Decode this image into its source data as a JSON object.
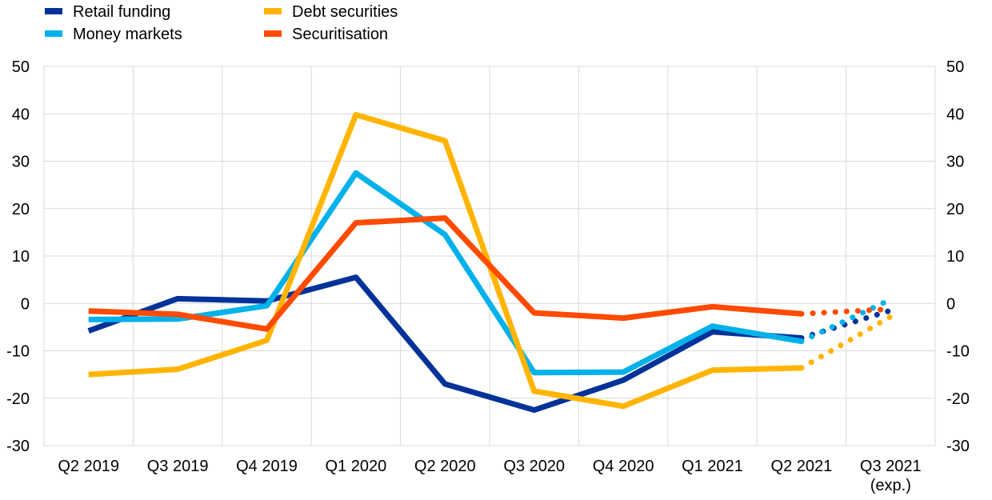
{
  "chart_data": {
    "type": "line",
    "title": "",
    "xlabel": "",
    "ylabel": "",
    "categories": [
      "Q2 2019",
      "Q3 2019",
      "Q4 2019",
      "Q1 2020",
      "Q2 2020",
      "Q3 2020",
      "Q4 2020",
      "Q1 2021",
      "Q2 2021",
      "Q3 2021"
    ],
    "category_sublabels": [
      "",
      "",
      "",
      "",
      "",
      "",
      "",
      "",
      "",
      "(exp.)"
    ],
    "ylim": [
      -30,
      50
    ],
    "yticks": [
      -30,
      -20,
      -10,
      0,
      10,
      20,
      30,
      40,
      50
    ],
    "grid": true,
    "legend_position": "top-left",
    "expected_from_index": 8,
    "series": [
      {
        "name": "Retail funding",
        "color": "#003299",
        "values": [
          -5.8,
          1.0,
          0.5,
          5.5,
          -17.0,
          -22.5,
          -16.2,
          -6.0,
          -7.3,
          -1.5
        ]
      },
      {
        "name": "Money markets",
        "color": "#00B1EA",
        "values": [
          -3.4,
          -3.3,
          -0.5,
          27.5,
          14.5,
          -14.6,
          -14.5,
          -4.8,
          -8.0,
          0.8
        ]
      },
      {
        "name": "Debt securities",
        "color": "#FFB400",
        "values": [
          -15.0,
          -13.9,
          -7.8,
          39.8,
          34.3,
          -18.5,
          -21.7,
          -14.1,
          -13.6,
          -2.8
        ]
      },
      {
        "name": "Securitisation",
        "color": "#FF4B00",
        "values": [
          -1.6,
          -2.3,
          -5.4,
          17.0,
          18.0,
          -2.0,
          -3.1,
          -0.7,
          -2.2,
          -1.2
        ]
      }
    ]
  }
}
